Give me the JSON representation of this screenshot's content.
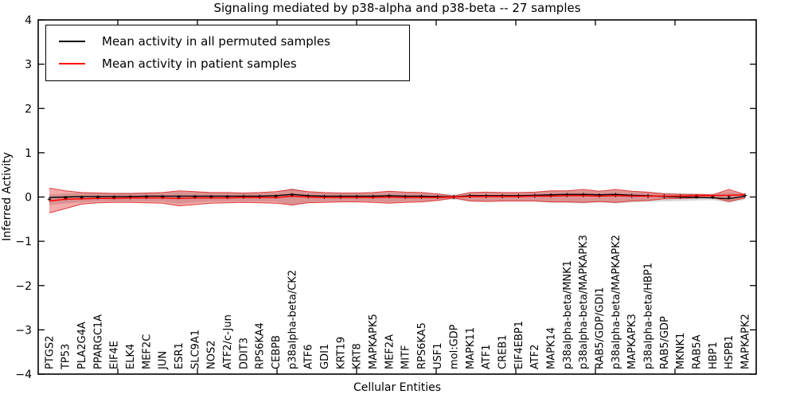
{
  "chart_data": {
    "type": "line",
    "title": "Signaling mediated by p38-alpha and p38-beta -- 27 samples",
    "xlabel": "Cellular Entities",
    "ylabel": "Inferred Activity",
    "ylim": [
      -4,
      4
    ],
    "ytick_labels": [
      "4",
      "3",
      "2",
      "1",
      "0",
      "−1",
      "−2",
      "−3",
      "−4"
    ],
    "ytick_values": [
      4,
      3,
      2,
      1,
      0,
      -1,
      -2,
      -3,
      -4
    ],
    "grid": false,
    "legend": {
      "position": "upper left",
      "entries": [
        {
          "label": "Mean activity in all permuted samples",
          "color": "#000000"
        },
        {
          "label": "Mean activity in patient samples",
          "color": "#ff0000"
        }
      ]
    },
    "categories": [
      "PTGS2",
      "TP53",
      "PLA2G4A",
      "PPARGC1A",
      "EIF4E",
      "ELK4",
      "MEF2C",
      "JUN",
      "ESR1",
      "SLC9A1",
      "NOS2",
      "ATF2/c-Jun",
      "DDIT3",
      "RPS6KA4",
      "CEBPB",
      "p38alpha-beta/CK2",
      "ATF6",
      "GDI1",
      "KRT19",
      "KRT8",
      "MAPKAPK5",
      "MEF2A",
      "MITF",
      "RPS6KA5",
      "USF1",
      "mol:GDP",
      "MAPK11",
      "ATF1",
      "CREB1",
      "EIF4EBP1",
      "ATF2",
      "MAPK14",
      "p38alpha-beta/MNK1",
      "p38alpha-beta/MAPKAPK3",
      "RAB5/GDP/GDI1",
      "p38alpha-beta/MAPKAPK2",
      "MAPKAPK3",
      "p38alpha-beta/HBP1",
      "RAB5/GDP",
      "MKNK1",
      "RAB5A",
      "HBP1",
      "HSPB1",
      "MAPKAPK2"
    ],
    "series": [
      {
        "name": "Mean activity in all permuted samples",
        "color": "#000000",
        "values": [
          -0.01,
          0.0,
          0.01,
          0.01,
          0.01,
          0.01,
          0.02,
          0.02,
          0.02,
          0.02,
          0.02,
          0.02,
          0.02,
          0.02,
          0.03,
          0.06,
          0.03,
          0.02,
          0.02,
          0.02,
          0.02,
          0.03,
          0.02,
          0.02,
          0.01,
          0.0,
          0.03,
          0.03,
          0.03,
          0.03,
          0.04,
          0.05,
          0.06,
          0.06,
          0.05,
          0.06,
          0.04,
          0.03,
          0.01,
          0.0,
          -0.01,
          -0.02,
          -0.04,
          0.02
        ],
        "band_upper": [
          0.06,
          0.08,
          0.1,
          0.1,
          0.1,
          0.1,
          0.1,
          0.1,
          0.12,
          0.12,
          0.1,
          0.1,
          0.1,
          0.1,
          0.1,
          0.2,
          0.12,
          0.1,
          0.1,
          0.1,
          0.1,
          0.12,
          0.1,
          0.1,
          0.08,
          0.06,
          0.1,
          0.1,
          0.1,
          0.1,
          0.1,
          0.13,
          0.13,
          0.15,
          0.12,
          0.15,
          0.12,
          0.11,
          0.1,
          0.09,
          0.08,
          0.07,
          0.13,
          0.06
        ],
        "band_lower": [
          -0.18,
          -0.15,
          -0.12,
          -0.1,
          -0.1,
          -0.1,
          -0.1,
          -0.1,
          -0.16,
          -0.12,
          -0.1,
          -0.1,
          -0.1,
          -0.1,
          -0.1,
          -0.2,
          -0.12,
          -0.1,
          -0.1,
          -0.1,
          -0.1,
          -0.12,
          -0.1,
          -0.1,
          -0.08,
          -0.06,
          -0.1,
          -0.1,
          -0.1,
          -0.1,
          -0.1,
          -0.13,
          -0.13,
          -0.15,
          -0.12,
          -0.15,
          -0.12,
          -0.11,
          -0.1,
          -0.09,
          -0.08,
          -0.07,
          -0.13,
          -0.06
        ],
        "band_color": "#999999"
      },
      {
        "name": "Mean activity in patient samples",
        "color": "#ff0000",
        "values": [
          -0.09,
          -0.05,
          -0.04,
          -0.03,
          -0.03,
          -0.02,
          -0.02,
          -0.02,
          -0.03,
          -0.02,
          -0.02,
          -0.02,
          -0.01,
          -0.01,
          -0.01,
          0.02,
          0.0,
          -0.01,
          -0.01,
          -0.01,
          -0.01,
          0.0,
          -0.01,
          -0.01,
          -0.01,
          0.0,
          0.01,
          0.01,
          0.01,
          0.01,
          0.02,
          0.02,
          0.03,
          0.03,
          0.02,
          0.03,
          0.02,
          0.02,
          0.02,
          0.02,
          0.03,
          0.03,
          0.04,
          0.05
        ],
        "band_upper": [
          0.2,
          0.14,
          0.1,
          0.09,
          0.08,
          0.08,
          0.09,
          0.1,
          0.14,
          0.12,
          0.1,
          0.1,
          0.09,
          0.1,
          0.12,
          0.17,
          0.12,
          0.1,
          0.09,
          0.09,
          0.1,
          0.13,
          0.11,
          0.1,
          0.07,
          0.02,
          0.1,
          0.11,
          0.1,
          0.1,
          0.11,
          0.14,
          0.14,
          0.17,
          0.13,
          0.17,
          0.13,
          0.11,
          0.07,
          0.06,
          0.06,
          0.05,
          0.17,
          0.06
        ],
        "band_lower": [
          -0.36,
          -0.26,
          -0.16,
          -0.13,
          -0.12,
          -0.12,
          -0.13,
          -0.14,
          -0.2,
          -0.17,
          -0.14,
          -0.13,
          -0.12,
          -0.13,
          -0.14,
          -0.18,
          -0.13,
          -0.12,
          -0.11,
          -0.11,
          -0.12,
          -0.14,
          -0.12,
          -0.11,
          -0.08,
          -0.02,
          -0.09,
          -0.1,
          -0.09,
          -0.09,
          -0.09,
          -0.11,
          -0.11,
          -0.12,
          -0.1,
          -0.12,
          -0.09,
          -0.08,
          -0.04,
          -0.03,
          -0.02,
          -0.01,
          -0.1,
          -0.02
        ],
        "band_color": "#e02020",
        "band_edge_color": "#dd2222"
      }
    ],
    "colors": {
      "frame": "#000000",
      "background": "#ffffff"
    }
  }
}
